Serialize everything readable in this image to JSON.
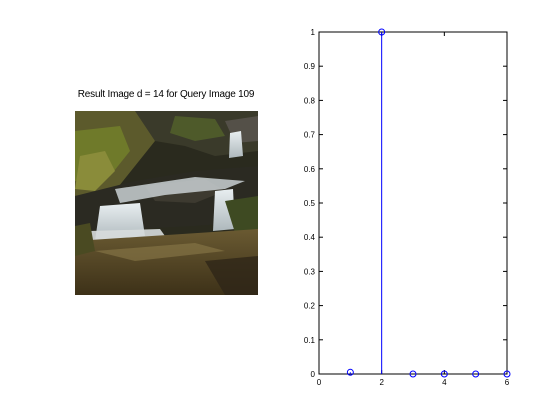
{
  "figure": {
    "image_panel": {
      "title": "Result Image d = 14 for Query Image 109"
    }
  },
  "chart_data": {
    "type": "stem",
    "x": [
      1,
      2,
      3,
      4,
      5,
      6
    ],
    "y": [
      0.005,
      1,
      0,
      0,
      0,
      0
    ],
    "xlim": [
      0,
      6
    ],
    "ylim": [
      0,
      1
    ],
    "xticks": [
      "0",
      "2",
      "4",
      "6"
    ],
    "yticks": [
      "0",
      "0.1",
      "0.2",
      "0.3",
      "0.4",
      "0.5",
      "0.6",
      "0.7",
      "0.8",
      "0.9",
      "1"
    ],
    "marker": "open-circle",
    "color": "#0000ff",
    "title": "",
    "xlabel": "",
    "ylabel": ""
  }
}
